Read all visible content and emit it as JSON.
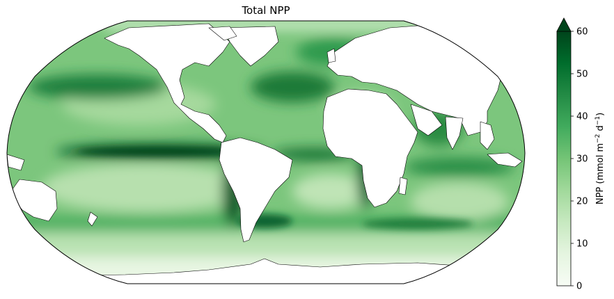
{
  "title": "Total NPP",
  "map": {
    "projection": "Robinson",
    "variable": "NPP",
    "colormap": "Greens",
    "land_color": "#ffffff",
    "coastline_color": "#000000"
  },
  "colorbar": {
    "label_text": "NPP (mmol m",
    "label_sup1": "−2",
    "label_mid": " d",
    "label_sup2": "−1",
    "label_end": ")",
    "min": 0,
    "max": 60,
    "extend": "max",
    "ticks": [
      0,
      10,
      20,
      30,
      40,
      50,
      60
    ],
    "tick_labels": [
      "0",
      "10",
      "20",
      "30",
      "40",
      "50",
      "60"
    ],
    "colors": [
      "#f7fcf5",
      "#e5f5e0",
      "#c7e9c0",
      "#a1d99b",
      "#74c476",
      "#41ab5d",
      "#238b45",
      "#006d2c",
      "#00441b"
    ]
  }
}
